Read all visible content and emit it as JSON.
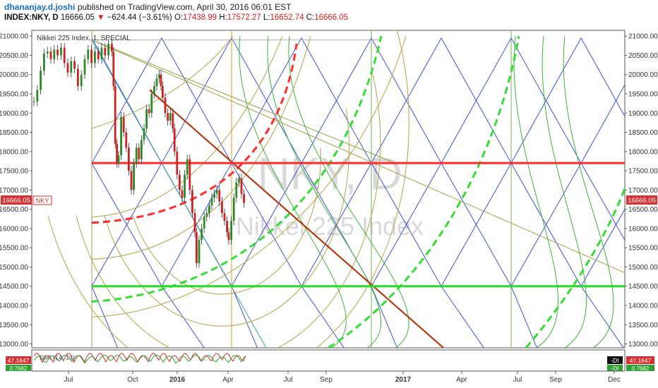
{
  "header": {
    "author": "dhananjay.d.joshi",
    "published": "published on TradingView.com, April 30, 2016 06:01 EST",
    "symbol": "INDEX:NKY, D",
    "last": "16666.05",
    "arrow": "▼",
    "change": "−624.44 (−3.61%)",
    "open_label": "O:",
    "open": "17438.99",
    "high_label": "H:",
    "high": "17572.27",
    "low_label": "L:",
    "low": "16652.74",
    "close_label": "C:",
    "close": "16666.05"
  },
  "chart_data": {
    "type": "line",
    "title": "Nikkei 225 Index, 1, SPECIAL",
    "watermark_symbol": "NKY, D",
    "watermark_name": "Nikkei 225 Index",
    "price_label": "16666.05",
    "symbol_tag": "NKY",
    "ylim": [
      12900,
      21150
    ],
    "y_ticks": [
      "21000.00",
      "20500.00",
      "20000.00",
      "19500.00",
      "19000.00",
      "18500.00",
      "18000.00",
      "17500.00",
      "17000.00",
      "16500.00",
      "16000.00",
      "15500.00",
      "15000.00",
      "14500.00",
      "14000.00",
      "13500.00",
      "13000.00"
    ],
    "x_labels": [
      "Jul",
      "Oct",
      "2016",
      "Apr",
      "Jul",
      "Sep",
      "2017",
      "Apr",
      "Jul",
      "Sep",
      "Dec"
    ],
    "resistance_level": 17700,
    "support_level": 14500,
    "series": [
      {
        "values": [
          [
            0,
            19300
          ],
          [
            4,
            19600
          ],
          [
            8,
            20100
          ],
          [
            12,
            20550
          ],
          [
            16,
            20600
          ],
          [
            20,
            20400
          ],
          [
            24,
            20650
          ],
          [
            28,
            20500
          ],
          [
            32,
            20700
          ],
          [
            36,
            20300
          ],
          [
            40,
            20050
          ],
          [
            44,
            20350
          ],
          [
            48,
            20150
          ],
          [
            52,
            19700
          ],
          [
            56,
            20000
          ],
          [
            60,
            20400
          ],
          [
            64,
            20650
          ],
          [
            68,
            20300
          ],
          [
            72,
            20600
          ],
          [
            76,
            20400
          ],
          [
            80,
            20700
          ],
          [
            84,
            20500
          ],
          [
            88,
            20800
          ],
          [
            92,
            20600
          ],
          [
            94,
            19700
          ],
          [
            96,
            18200
          ],
          [
            98,
            17700
          ],
          [
            100,
            17900
          ],
          [
            103,
            18900
          ],
          [
            106,
            18500
          ],
          [
            109,
            18100
          ],
          [
            112,
            17500
          ],
          [
            115,
            17000
          ],
          [
            118,
            17700
          ],
          [
            121,
            18100
          ],
          [
            124,
            17800
          ],
          [
            127,
            18300
          ],
          [
            130,
            18600
          ],
          [
            133,
            19100
          ],
          [
            136,
            19000
          ],
          [
            139,
            19500
          ],
          [
            142,
            19700
          ],
          [
            145,
            19900
          ],
          [
            148,
            20000
          ],
          [
            150,
            19700
          ],
          [
            152,
            19400
          ],
          [
            155,
            19000
          ],
          [
            158,
            18800
          ],
          [
            161,
            19000
          ],
          [
            164,
            18600
          ],
          [
            166,
            18000
          ],
          [
            169,
            17400
          ],
          [
            172,
            17000
          ],
          [
            175,
            16800
          ],
          [
            178,
            17400
          ],
          [
            181,
            17800
          ],
          [
            184,
            17000
          ],
          [
            187,
            16400
          ],
          [
            190,
            15900
          ],
          [
            192,
            15100
          ],
          [
            195,
            15700
          ],
          [
            198,
            16000
          ],
          [
            201,
            16300
          ],
          [
            204,
            16400
          ],
          [
            207,
            16600
          ],
          [
            210,
            16800
          ],
          [
            213,
            16900
          ],
          [
            216,
            17000
          ],
          [
            219,
            16700
          ],
          [
            222,
            16400
          ],
          [
            225,
            16200
          ],
          [
            228,
            15900
          ],
          [
            230,
            15700
          ],
          [
            233,
            16200
          ],
          [
            236,
            16800
          ],
          [
            239,
            17200
          ],
          [
            242,
            17300
          ],
          [
            245,
            16900
          ],
          [
            248,
            16666
          ]
        ]
      }
    ],
    "indicator": {
      "label": "DMI (14, 14)",
      "left_value": "47.1647",
      "left_value2": "0.7682",
      "right_value": "47.1647",
      "right_value2": "0.7682",
      "right_tag1": "-DI",
      "right_tag2": "-DI"
    },
    "colors": {
      "resistance": "#ff2a2a",
      "support": "#22dd22",
      "grid_blue": "#2a3fd4",
      "arc_olive": "#b5a348",
      "arc_green": "#3cb33c",
      "trend_brown": "#b23a10",
      "candle_up": "#2a8a2a",
      "candle_down": "#cc2222",
      "dmi_red": "#d03030",
      "dmi_green": "#30a030"
    }
  }
}
